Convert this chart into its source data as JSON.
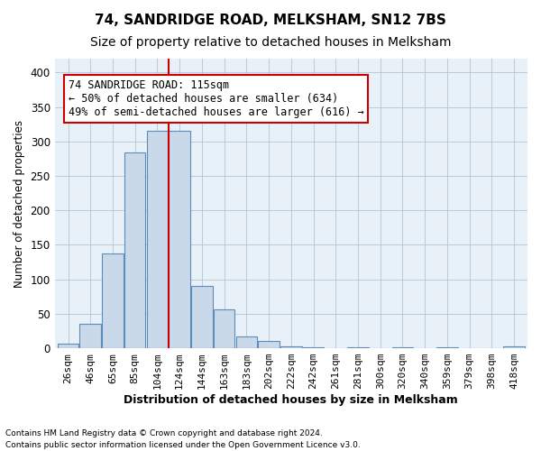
{
  "title1": "74, SANDRIDGE ROAD, MELKSHAM, SN12 7BS",
  "title2": "Size of property relative to detached houses in Melksham",
  "xlabel": "Distribution of detached houses by size in Melksham",
  "ylabel": "Number of detached properties",
  "bar_labels": [
    "26sqm",
    "46sqm",
    "65sqm",
    "85sqm",
    "104sqm",
    "124sqm",
    "144sqm",
    "163sqm",
    "183sqm",
    "202sqm",
    "222sqm",
    "242sqm",
    "261sqm",
    "281sqm",
    "300sqm",
    "320sqm",
    "340sqm",
    "359sqm",
    "379sqm",
    "398sqm",
    "418sqm"
  ],
  "bar_heights": [
    6,
    35,
    137,
    284,
    315,
    315,
    90,
    57,
    17,
    10,
    3,
    2,
    0,
    2,
    0,
    2,
    0,
    2,
    0,
    0,
    3
  ],
  "bar_color": "#c9d9ea",
  "bar_edge_color": "#5b8db8",
  "vline_x": 4.5,
  "vline_color": "#cc0000",
  "annotation_text": "74 SANDRIDGE ROAD: 115sqm\n← 50% of detached houses are smaller (634)\n49% of semi-detached houses are larger (616) →",
  "annotation_box_color": "#cc0000",
  "ylim": [
    0,
    420
  ],
  "yticks": [
    0,
    50,
    100,
    150,
    200,
    250,
    300,
    350,
    400
  ],
  "grid_color": "#b0c4d8",
  "bg_color": "#e8f0f8",
  "footer1": "Contains HM Land Registry data © Crown copyright and database right 2024.",
  "footer2": "Contains public sector information licensed under the Open Government Licence v3.0.",
  "title1_fontsize": 11,
  "title2_fontsize": 10,
  "annotation_fontsize": 8.5,
  "axis_fontsize": 8,
  "xlabel_fontsize": 9,
  "ylabel_fontsize": 8.5
}
